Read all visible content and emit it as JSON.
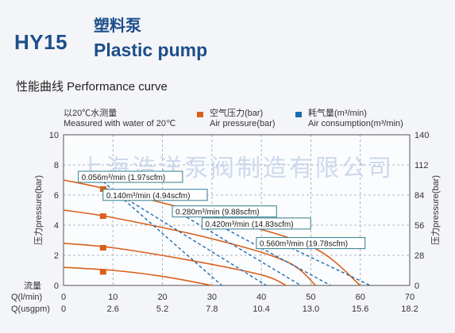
{
  "header": {
    "model": "HY15",
    "title_cn": "塑料泵",
    "title_en": "Plastic pump",
    "section": "性能曲线  Performance curve"
  },
  "legend": {
    "note_cn": "以20℃水测量",
    "note_en": "Measured with water of 20℃",
    "pressure_cn": "空气压力(bar)",
    "pressure_en": "Air pressure(bar)",
    "consumption_cn": "耗气量(m³/min)",
    "consumption_en": "Air consumption(m³/min)",
    "pressure_color": "#d9601a",
    "consumption_color": "#1e6cb0"
  },
  "watermark": "上海浩洋泵阀制造有限公司",
  "chart_data": {
    "type": "line",
    "xlim": [
      0,
      70
    ],
    "ylim": [
      0,
      10
    ],
    "y2lim": [
      0,
      140
    ],
    "x_ticks": [
      "0",
      "10",
      "20",
      "30",
      "40",
      "50",
      "60",
      "70"
    ],
    "x2_ticks": [
      "0",
      "2.6",
      "5.2",
      "7.8",
      "10.4",
      "13.0",
      "15.6",
      "18.2"
    ],
    "y_ticks": [
      "0",
      "2",
      "4",
      "6",
      "8",
      "10"
    ],
    "y2_ticks": [
      "0",
      "28",
      "56",
      "84",
      "112",
      "140"
    ],
    "xlabel": "Q(l/min)",
    "x2label": "Q(usgpm)",
    "x_row_label": "流量",
    "ylabel": "压力pressure(bar)",
    "y2label": "压力pressure(bar)",
    "pressure_color": "#d9601a",
    "consumption_color": "#1e6cb0",
    "pressure_curves": [
      {
        "points": [
          [
            0,
            7.0
          ],
          [
            10,
            6.3
          ],
          [
            30,
            4.6
          ],
          [
            50,
            2.6
          ],
          [
            60,
            0
          ]
        ]
      },
      {
        "points": [
          [
            0,
            5.0
          ],
          [
            10,
            4.5
          ],
          [
            30,
            3.1
          ],
          [
            45,
            1.6
          ],
          [
            51,
            0
          ]
        ]
      },
      {
        "points": [
          [
            0,
            2.8
          ],
          [
            10,
            2.5
          ],
          [
            25,
            1.7
          ],
          [
            40,
            0.7
          ],
          [
            45,
            0
          ]
        ]
      },
      {
        "points": [
          [
            0,
            1.2
          ],
          [
            10,
            1.0
          ],
          [
            20,
            0.6
          ],
          [
            30,
            0
          ]
        ]
      }
    ],
    "pressure_markers": [
      [
        8,
        6.4
      ],
      [
        8,
        4.6
      ],
      [
        8,
        2.5
      ],
      [
        8,
        0.9
      ]
    ],
    "consumption_lines": [
      {
        "label": "0.056m³/min (1.97scfm)",
        "points": [
          [
            8,
            6.9
          ],
          [
            32,
            0
          ]
        ]
      },
      {
        "label": "0.140m³/min (4.94scfm)",
        "points": [
          [
            10,
            6.3
          ],
          [
            41,
            0
          ]
        ]
      },
      {
        "label": "0.280m³/min (9.88scfm)",
        "points": [
          [
            22,
            5.1
          ],
          [
            48,
            0
          ]
        ]
      },
      {
        "label": "0.420m³/min (14.83scfm)",
        "points": [
          [
            32,
            3.9
          ],
          [
            54,
            0
          ]
        ]
      },
      {
        "label": "0.560m³/min (19.78scfm)",
        "points": [
          [
            44,
            2.8
          ],
          [
            62,
            0
          ]
        ]
      }
    ],
    "consumption_label_pos": [
      [
        3,
        7.0
      ],
      [
        8,
        5.8
      ],
      [
        22,
        4.7
      ],
      [
        28,
        3.9
      ],
      [
        39,
        2.6
      ]
    ]
  }
}
